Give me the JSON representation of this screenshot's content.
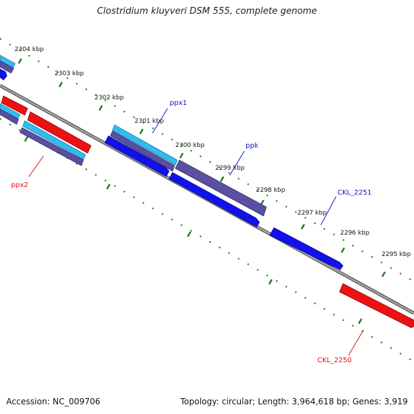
{
  "title": "Clostridium kluyveri DSM 555, complete genome",
  "footer": {
    "accession": "Accession: NC_009706",
    "summary": "Topology: circular; Length: 3,964,618 bp; Genes: 3,919"
  },
  "colors": {
    "backbone": "#7d7d7d",
    "tick": "#1a7a1a",
    "gene_red": "#ee1111",
    "gene_blue": "#1111ee",
    "gene_cyan": "#33bbee",
    "gene_slate": "#5a4fa0",
    "label_blue": "#1010cc",
    "label_red": "#dd1111"
  },
  "scale_labels": [
    {
      "text": "2304 kbp"
    },
    {
      "text": "2303 kbp"
    },
    {
      "text": "2302 kbp"
    },
    {
      "text": "2301 kbp"
    },
    {
      "text": "2300 kbp"
    },
    {
      "text": "2299 kbp"
    },
    {
      "text": "2298 kbp"
    },
    {
      "text": "2297 kbp"
    },
    {
      "text": "2296 kbp"
    },
    {
      "text": "2295 kbp"
    }
  ],
  "gene_labels": [
    {
      "text": "ppx1",
      "color": "blue"
    },
    {
      "text": "ppk",
      "color": "blue"
    },
    {
      "text": "CKL_2251",
      "color": "blue"
    },
    {
      "text": "ppx2",
      "color": "red"
    },
    {
      "text": "CKL_2250",
      "color": "red"
    }
  ]
}
